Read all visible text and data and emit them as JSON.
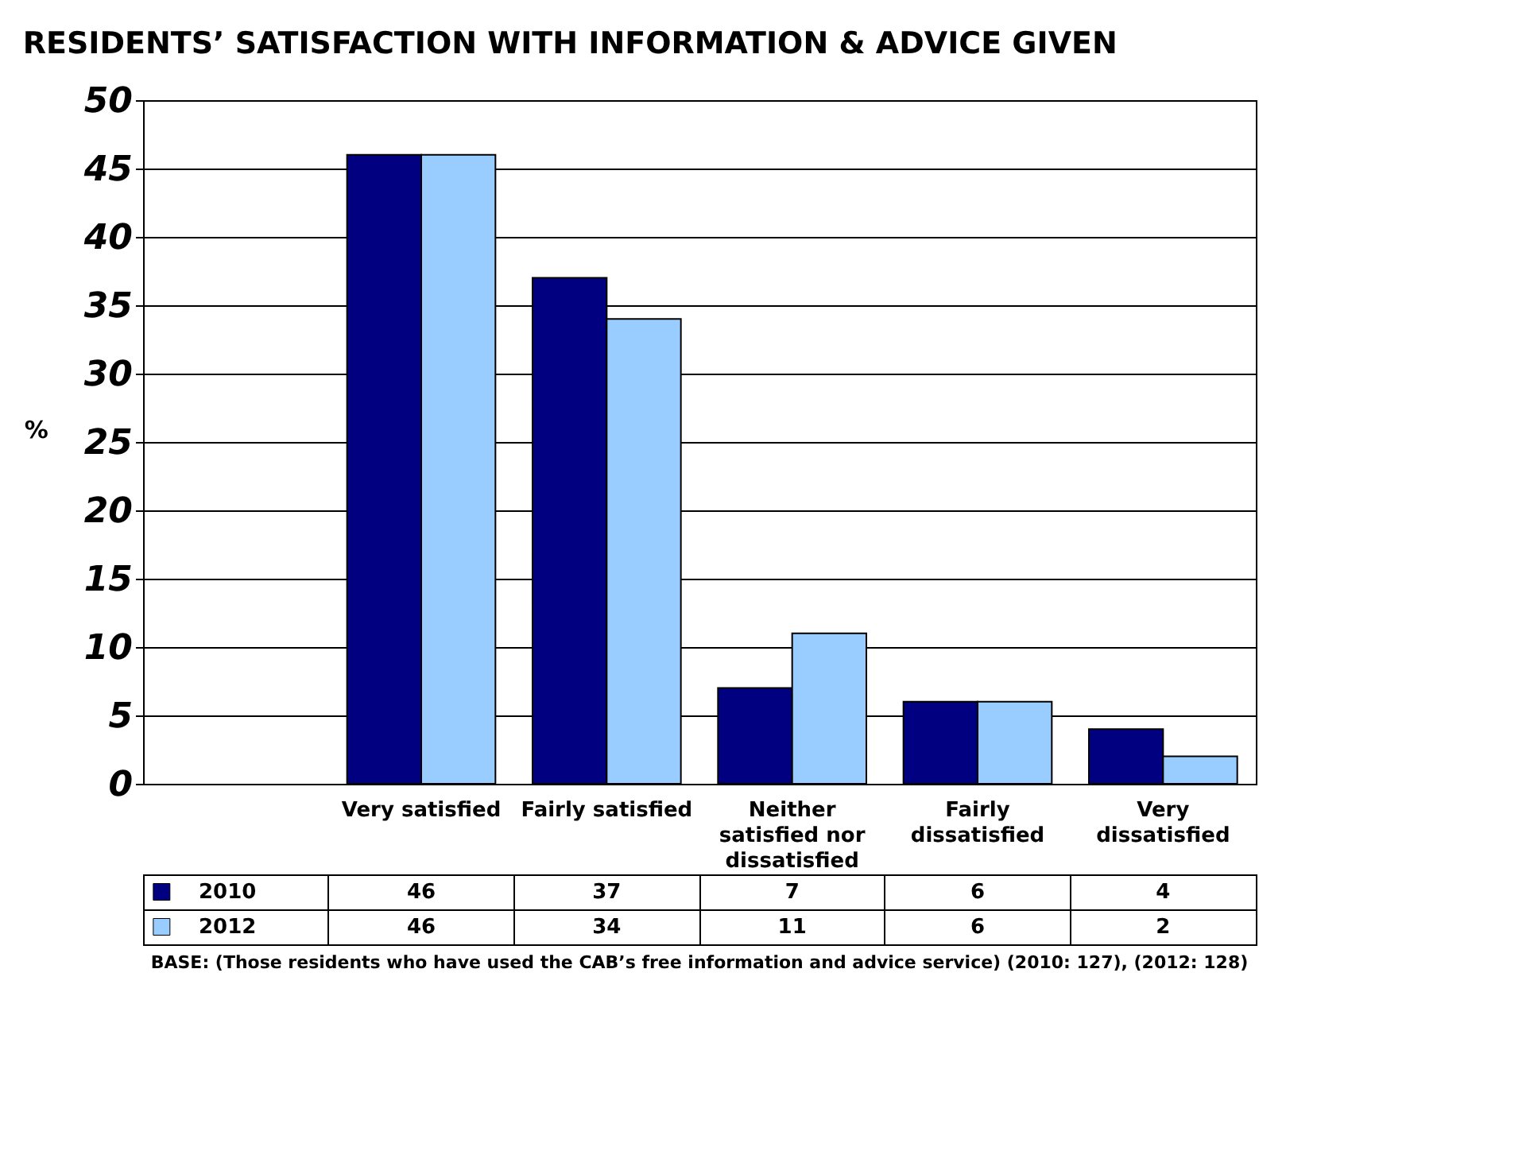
{
  "chart_data": {
    "type": "bar",
    "title": "RESIDENTS’ SATISFACTION WITH INFORMATION & ADVICE GIVEN",
    "ylabel": "%",
    "categories": [
      "Very satisfied",
      "Fairly satisfied",
      "Neither satisfied nor dissatisfied",
      "Fairly dissatisfied",
      "Very dissatisfied"
    ],
    "series": [
      {
        "name": "2010",
        "color": "#000080",
        "values": [
          46,
          37,
          7,
          6,
          4
        ]
      },
      {
        "name": "2012",
        "color": "#99ccff",
        "values": [
          46,
          34,
          11,
          6,
          2
        ]
      }
    ],
    "ylim": [
      0,
      50
    ],
    "yticks": [
      0,
      5,
      10,
      15,
      20,
      25,
      30,
      35,
      40,
      45,
      50
    ],
    "grid": "y",
    "legend": "bottom left",
    "data_labels": true,
    "annotations": [
      "BASE: (Those residents who have used the CAB’s free information and advice service) (2010: 127), (2012: 128)"
    ]
  }
}
